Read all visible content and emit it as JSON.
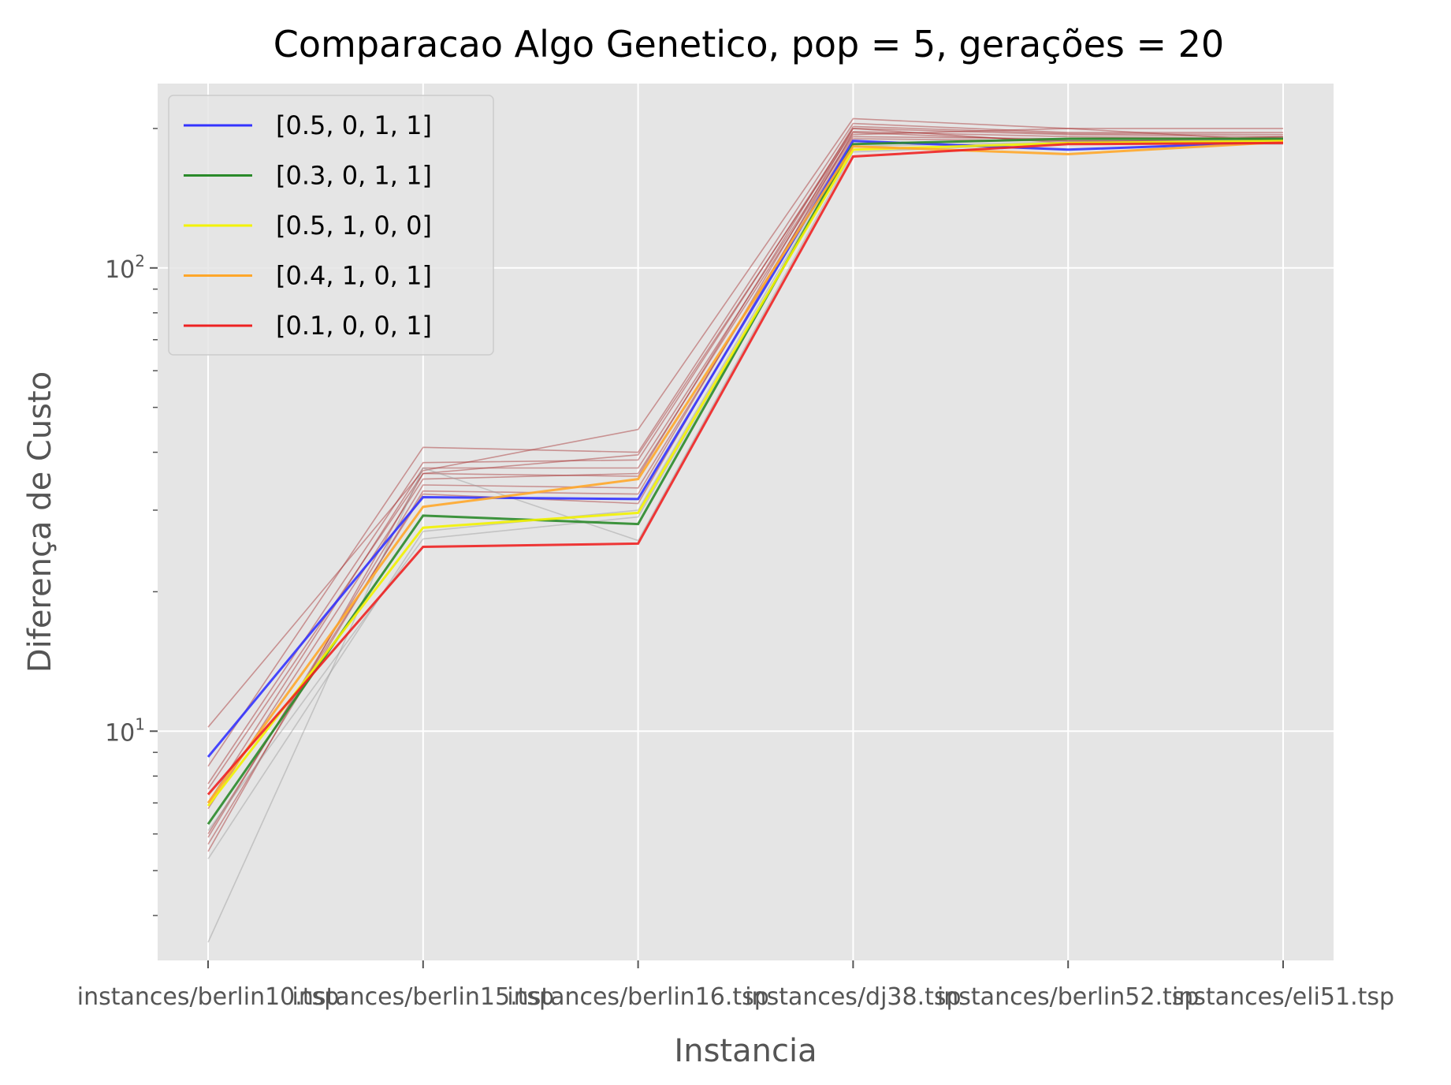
{
  "chart_data": {
    "type": "line",
    "title": "Comparacao Algo Genetico, pop = 5, gerações = 20",
    "xlabel": "Instancia",
    "ylabel": "Diferença de Custo",
    "yscale": "log",
    "ylim": [
      3.2,
      250
    ],
    "grid": true,
    "legend_position": "upper-left",
    "x_ticks": [
      "instances/berlin10.tsp",
      "instances/berlin15.tsp",
      "instances/berlin16.tsp",
      "instances/dj38.tsp",
      "instances/berlin52.tsp",
      "instances/eli51.tsp"
    ],
    "y_tick_labels": [
      {
        "value": 10,
        "base": "10",
        "exp": "1"
      },
      {
        "value": 100,
        "base": "10",
        "exp": "2"
      }
    ],
    "series": [
      {
        "name": "[0.5, 0, 1, 1]",
        "color": "#3333ff",
        "values": [
          8.8,
          32.0,
          31.7,
          188,
          180,
          187
        ]
      },
      {
        "name": "[0.3, 0, 1, 1]",
        "color": "#2a8a2a",
        "values": [
          6.3,
          29.2,
          28.0,
          185,
          190,
          190
        ]
      },
      {
        "name": "[0.5, 1, 0, 0]",
        "color": "#f2f200",
        "values": [
          6.9,
          27.5,
          29.6,
          180,
          186,
          188
        ]
      },
      {
        "name": "[0.4, 1, 0, 1]",
        "color": "#ffa72a",
        "values": [
          7.0,
          30.5,
          35.0,
          183,
          176,
          187
        ]
      },
      {
        "name": "[0.1, 0, 0, 1]",
        "color": "#ee2222",
        "values": [
          7.3,
          25.0,
          25.4,
          174,
          185,
          186
        ]
      }
    ],
    "background_series": [
      {
        "color": "#a52a2a",
        "values": [
          10.2,
          36.5,
          44.8,
          210,
          200,
          200
        ]
      },
      {
        "color": "#a52a2a",
        "values": [
          8.4,
          41.0,
          40.0,
          205,
          196,
          196
        ]
      },
      {
        "color": "#a52a2a",
        "values": [
          7.7,
          38.0,
          38.5,
          200,
          194,
          192
        ]
      },
      {
        "color": "#a52a2a",
        "values": [
          7.5,
          36.0,
          39.5,
          197,
          192,
          190
        ]
      },
      {
        "color": "#a52a2a",
        "values": [
          7.0,
          37.0,
          37.0,
          194,
          200,
          188
        ]
      },
      {
        "color": "#a52a2a",
        "values": [
          6.8,
          35.0,
          36.0,
          192,
          190,
          191
        ]
      },
      {
        "color": "#a52a2a",
        "values": [
          5.9,
          34.0,
          33.5,
          190,
          188,
          189
        ]
      },
      {
        "color": "#a52a2a",
        "values": [
          5.7,
          33.0,
          32.5,
          200,
          186,
          192
        ]
      },
      {
        "color": "#a52a2a",
        "values": [
          5.5,
          36.0,
          35.5,
          202,
          195,
          194
        ]
      },
      {
        "color": "#a52a2a",
        "values": [
          6.0,
          32.5,
          31.0,
          196,
          188,
          187
        ]
      },
      {
        "color": "#999999",
        "values": [
          5.3,
          27.0,
          30.0,
          185,
          189,
          189
        ]
      },
      {
        "color": "#999999",
        "values": [
          3.5,
          37.0,
          25.8,
          178,
          186,
          185
        ]
      },
      {
        "color": "#999999",
        "values": [
          6.1,
          26.0,
          29.0,
          183,
          187,
          188
        ]
      }
    ]
  }
}
